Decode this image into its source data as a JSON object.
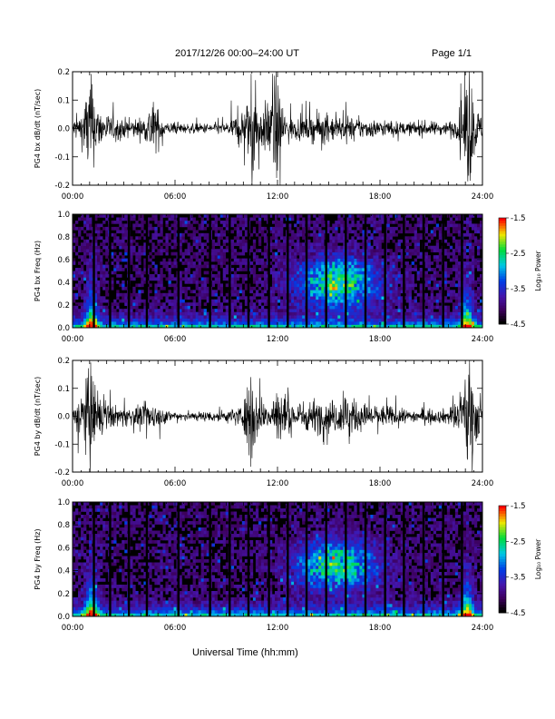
{
  "header": {
    "title": "2017/12/26  00:00–24:00 UT",
    "page": "Page 1/1"
  },
  "xaxis_label": "Universal Time (hh:mm)",
  "time_ticks": [
    "00:00",
    "06:00",
    "12:00",
    "18:00",
    "24:00"
  ],
  "colors": {
    "trace": "#000000",
    "cmap_low": "#000000",
    "cmap_high": "#ff0000"
  },
  "chart_data": [
    {
      "type": "line",
      "ylabel": "PG4 bx dB/dt (nT/sec)",
      "ylim": [
        -0.2,
        0.2
      ],
      "yticks": [
        "0.2",
        "0.1",
        "0.0",
        "-0.1",
        "-0.2"
      ],
      "xlim": [
        "00:00",
        "24:00"
      ],
      "x_hours": [
        0,
        0.5,
        0.8,
        1.0,
        1.2,
        1.6,
        2.5,
        3.5,
        4.3,
        4.6,
        5.5,
        7.0,
        9.0,
        9.5,
        10.2,
        10.5,
        11.0,
        11.5,
        11.9,
        12.5,
        13.5,
        14.5,
        15.5,
        16.5,
        17.5,
        18.5,
        19.5,
        20.5,
        21.5,
        22.5,
        22.8,
        23.2,
        23.6,
        24.0
      ],
      "amplitude": [
        0.03,
        0.05,
        0.12,
        0.2,
        0.12,
        0.06,
        0.035,
        0.03,
        0.04,
        0.1,
        0.02,
        0.015,
        0.02,
        0.04,
        0.08,
        0.18,
        0.06,
        0.1,
        0.18,
        0.04,
        0.035,
        0.05,
        0.04,
        0.035,
        0.03,
        0.025,
        0.02,
        0.025,
        0.02,
        0.03,
        0.1,
        0.2,
        0.08,
        0.03
      ]
    },
    {
      "type": "heatmap",
      "ylabel": "PG4 bx Freq (Hz)",
      "ylim": [
        0.0,
        1.0
      ],
      "yticks": [
        "1.0",
        "0.8",
        "0.6",
        "0.4",
        "0.2",
        "0.0"
      ],
      "colorbar": {
        "label": "Log₁₀ Power",
        "range": [
          -4.5,
          -1.5
        ],
        "ticks": [
          "-1.5",
          "-2.5",
          "-3.5",
          "-4.5"
        ]
      },
      "gap_hours": [
        1.25,
        2.2,
        3.3,
        4.35,
        6.2,
        8.05,
        9.2,
        10.3,
        11.5,
        12.6,
        13.7,
        14.85,
        16.0,
        17.15,
        18.3,
        19.4,
        20.55,
        21.7,
        22.8
      ]
    },
    {
      "type": "line",
      "ylabel": "PG4 by dB/dt (nT/sec)",
      "ylim": [
        -0.2,
        0.2
      ],
      "yticks": [
        "0.2",
        "0.1",
        "0.0",
        "-0.1",
        "-0.2"
      ],
      "xlim": [
        "00:00",
        "24:00"
      ],
      "x_hours": [
        0,
        0.4,
        0.8,
        1.0,
        1.3,
        1.8,
        2.5,
        3.5,
        4.3,
        4.6,
        5.5,
        7.0,
        9.0,
        10.0,
        10.5,
        10.8,
        11.5,
        12.0,
        12.5,
        13.5,
        14.5,
        15.5,
        16.0,
        16.5,
        17.5,
        18.5,
        19.5,
        20.5,
        21.5,
        22.5,
        22.8,
        23.2,
        23.6,
        24.0
      ],
      "amplitude": [
        0.03,
        0.07,
        0.12,
        0.2,
        0.1,
        0.05,
        0.035,
        0.03,
        0.04,
        0.05,
        0.02,
        0.015,
        0.02,
        0.04,
        0.18,
        0.06,
        0.04,
        0.12,
        0.05,
        0.05,
        0.06,
        0.05,
        0.09,
        0.05,
        0.04,
        0.035,
        0.02,
        0.025,
        0.02,
        0.04,
        0.1,
        0.2,
        0.1,
        0.03
      ]
    },
    {
      "type": "heatmap",
      "ylabel": "PG4 by Freq (Hz)",
      "ylim": [
        0.0,
        1.0
      ],
      "yticks": [
        "1.0",
        "0.8",
        "0.6",
        "0.4",
        "0.2",
        "0.0"
      ],
      "colorbar": {
        "label": "Log₁₀ Power",
        "range": [
          -4.5,
          -1.5
        ],
        "ticks": [
          "-1.5",
          "-2.5",
          "-3.5",
          "-4.5"
        ]
      },
      "gap_hours": [
        1.25,
        2.2,
        3.3,
        4.35,
        6.2,
        8.05,
        9.2,
        10.3,
        11.5,
        12.6,
        13.7,
        14.85,
        16.0,
        17.15,
        18.3,
        19.4,
        20.55,
        21.7,
        22.8
      ]
    }
  ]
}
